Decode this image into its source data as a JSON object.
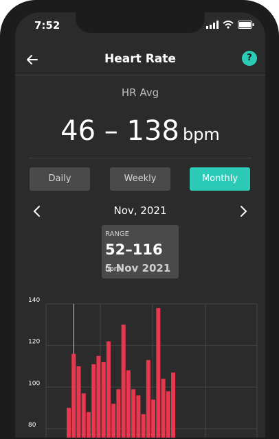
{
  "status": {
    "time": "7:52"
  },
  "header": {
    "title": "Heart Rate",
    "help": "?"
  },
  "summary": {
    "label": "HR Avg",
    "value": "46 – 138",
    "unit": "bpm"
  },
  "tabs": [
    {
      "label": "Daily"
    },
    {
      "label": "Weekly"
    },
    {
      "label": "Monthly",
      "active": true
    }
  ],
  "period": {
    "label": "Nov, 2021"
  },
  "tooltip": {
    "caption": "RANGE",
    "range": "52–116",
    "unit": "bpm",
    "date": "5 Nov 2021"
  },
  "colors": {
    "accent": "#2ccbb8",
    "bar": "#e8384f",
    "background": "#2b2b2b"
  },
  "chart_data": {
    "type": "bar",
    "ylim": [
      70,
      140
    ],
    "y_ticks": [
      80,
      100,
      120,
      140
    ],
    "tick_labels": [
      "80",
      "100",
      "120",
      "140"
    ],
    "selected_index": 1,
    "series": [
      {
        "tops": [
          90,
          116,
          110,
          97,
          88,
          111,
          115,
          112,
          122,
          92,
          99,
          130,
          108,
          99,
          96,
          87,
          113,
          94,
          138,
          104,
          98,
          107
        ]
      }
    ]
  }
}
